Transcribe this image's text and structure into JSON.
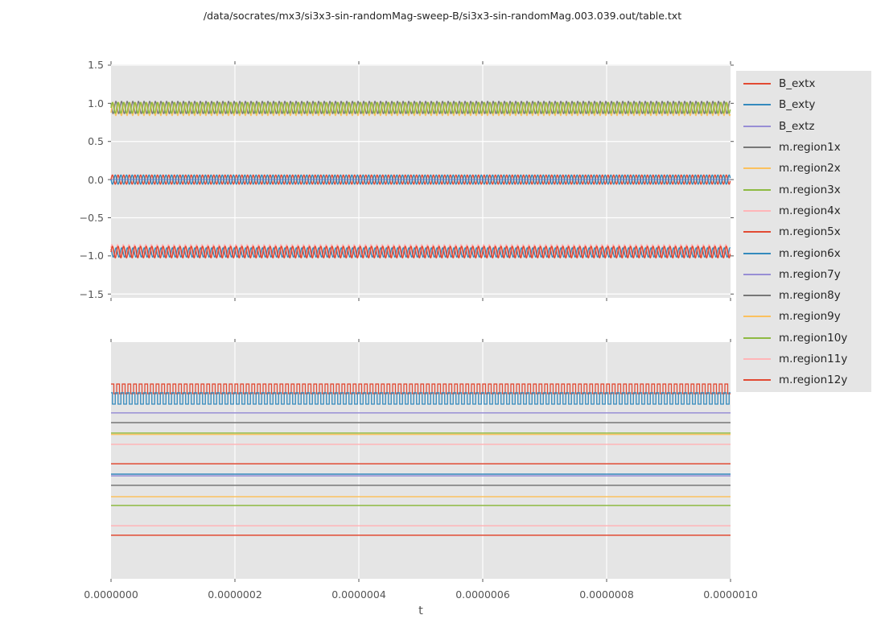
{
  "title": "/data/socrates/mx3/si3x3-sin-randomMag-sweep-B/si3x3-sin-randomMag.003.039.out/table.txt",
  "xlabel": "t",
  "colors": {
    "axes_background": "#e5e5e5",
    "grid": "#ffffff",
    "tick": "#555555",
    "tick_label": "#555555",
    "title_text": "#262626",
    "legend_background": "#e5e5e5",
    "palette": {
      "red": "#e24a33",
      "blue": "#348abd",
      "purple": "#988ed5",
      "gray": "#777777",
      "orange": "#fbc15e",
      "green": "#8eba42",
      "pink": "#ffb5b8"
    }
  },
  "legend": {
    "entries": [
      {
        "label": "B_extx",
        "color": "#e24a33"
      },
      {
        "label": "B_exty",
        "color": "#348abd"
      },
      {
        "label": "B_extz",
        "color": "#988ed5"
      },
      {
        "label": "m.region1x",
        "color": "#777777"
      },
      {
        "label": "m.region2x",
        "color": "#fbc15e"
      },
      {
        "label": "m.region3x",
        "color": "#8eba42"
      },
      {
        "label": "m.region4x",
        "color": "#ffb5b8"
      },
      {
        "label": "m.region5x",
        "color": "#e24a33"
      },
      {
        "label": "m.region6x",
        "color": "#348abd"
      },
      {
        "label": "m.region7y",
        "color": "#988ed5"
      },
      {
        "label": "m.region8y",
        "color": "#777777"
      },
      {
        "label": "m.region9y",
        "color": "#fbc15e"
      },
      {
        "label": "m.region10y",
        "color": "#8eba42"
      },
      {
        "label": "m.region11y",
        "color": "#ffb5b8"
      },
      {
        "label": "m.region12y",
        "color": "#e24a33"
      }
    ]
  },
  "chart_data": [
    {
      "id": "top",
      "type": "line",
      "xlim": [
        0,
        1e-06
      ],
      "ylim": [
        -1.55,
        1.51
      ],
      "x_ticks": [
        0,
        2e-07,
        4e-07,
        6e-07,
        8e-07,
        1e-06
      ],
      "y_ticks": [
        1.5,
        1.0,
        0.5,
        0.0,
        -0.5,
        -1.0,
        -1.5
      ],
      "y_tick_labels": [
        "1.5",
        "1.0",
        "0.5",
        "0.0",
        "−0.5",
        "−1.0",
        "−1.5"
      ],
      "grid": true,
      "series": [
        {
          "name": "B_extz",
          "color": "#988ed5",
          "waveform": "flat",
          "center": 0.0,
          "lw": 1.2
        },
        {
          "name": "B_extx",
          "color": "#e24a33",
          "waveform": "sine",
          "center": 0.0,
          "amplitude": 0.06,
          "cycles": 110,
          "phase": 0.0,
          "lw": 1.4
        },
        {
          "name": "B_exty",
          "color": "#348abd",
          "waveform": "sine",
          "center": 0.0,
          "amplitude": 0.06,
          "cycles": 110,
          "phase": 3.1,
          "lw": 1.4
        },
        {
          "name": "m.region1x",
          "color": "#777777",
          "waveform": "sine",
          "center": 0.945,
          "amplitude": 0.08,
          "cycles": 110,
          "phase": 2.4,
          "lw": 1.4
        },
        {
          "name": "m.region2x",
          "color": "#fbc15e",
          "waveform": "sine",
          "center": 0.925,
          "amplitude": 0.085,
          "cycles": 110,
          "phase": -0.6,
          "lw": 1.4
        },
        {
          "name": "m.region3x",
          "color": "#8eba42",
          "waveform": "sine",
          "center": 0.94,
          "amplitude": 0.07,
          "cycles": 110,
          "phase": 0.0,
          "lw": 1.5
        },
        {
          "name": "m.region4x",
          "color": "#ffb5b8",
          "waveform": "sine",
          "center": -0.935,
          "amplitude": 0.085,
          "cycles": 110,
          "phase": 0.5,
          "lw": 1.4
        },
        {
          "name": "m.region6x",
          "color": "#348abd",
          "waveform": "sine",
          "center": -0.955,
          "amplitude": 0.06,
          "cycles": 110,
          "phase": 2.2,
          "lw": 1.4
        },
        {
          "name": "m.region5x",
          "color": "#e24a33",
          "waveform": "sine",
          "center": -0.95,
          "amplitude": 0.075,
          "cycles": 110,
          "phase": 0.0,
          "lw": 1.5
        }
      ]
    },
    {
      "id": "bottom",
      "type": "line",
      "xlim": [
        0,
        1e-06
      ],
      "x_ticks": [
        0,
        2e-07,
        4e-07,
        6e-07,
        8e-07,
        1e-06
      ],
      "x_tick_labels": [
        "0.0000000",
        "0.0000002",
        "0.0000004",
        "0.0000006",
        "0.0000008",
        "0.0000010"
      ],
      "y_ticks": [],
      "grid": true,
      "note": "y axis unlabeled; vertical positions given as fraction of plot height from top",
      "series": [
        {
          "name": "B_extx",
          "color": "#e24a33",
          "waveform": "square",
          "y_high_frac": 0.177,
          "y_low_frac": 0.218,
          "cycles": 110,
          "phase": 0.0,
          "lw": 1.3
        },
        {
          "name": "B_exty",
          "color": "#348abd",
          "waveform": "square",
          "y_high_frac": 0.214,
          "y_low_frac": 0.262,
          "cycles": 110,
          "phase": 0.25,
          "lw": 1.3
        },
        {
          "name": "B_extz",
          "color": "#988ed5",
          "waveform": "flat",
          "y_frac": 0.299,
          "lw": 1.5
        },
        {
          "name": "m.region1x",
          "color": "#777777",
          "waveform": "flat",
          "y_frac": 0.34,
          "lw": 1.5
        },
        {
          "name": "m.region2x",
          "color": "#fbc15e",
          "waveform": "flat",
          "y_frac": 0.39,
          "lw": 1.5
        },
        {
          "name": "m.region3x",
          "color": "#8eba42",
          "waveform": "flat",
          "y_frac": 0.384,
          "lw": 1.4
        },
        {
          "name": "m.region4x",
          "color": "#ffb5b8",
          "waveform": "flat",
          "y_frac": 0.432,
          "lw": 1.5
        },
        {
          "name": "m.region5x",
          "color": "#e24a33",
          "waveform": "flat",
          "y_frac": 0.514,
          "lw": 1.5
        },
        {
          "name": "m.region7y",
          "color": "#988ed5",
          "waveform": "flat",
          "y_frac": 0.565,
          "lw": 1.5
        },
        {
          "name": "m.region6x",
          "color": "#348abd",
          "waveform": "flat",
          "y_frac": 0.558,
          "lw": 1.5
        },
        {
          "name": "m.region8y",
          "color": "#777777",
          "waveform": "flat",
          "y_frac": 0.605,
          "lw": 1.5
        },
        {
          "name": "m.region9y",
          "color": "#fbc15e",
          "waveform": "flat",
          "y_frac": 0.653,
          "lw": 1.5
        },
        {
          "name": "m.region10y",
          "color": "#8eba42",
          "waveform": "flat",
          "y_frac": 0.69,
          "lw": 1.5
        },
        {
          "name": "m.region11y",
          "color": "#ffb5b8",
          "waveform": "flat",
          "y_frac": 0.776,
          "lw": 1.5
        },
        {
          "name": "m.region12y",
          "color": "#e24a33",
          "waveform": "flat",
          "y_frac": 0.816,
          "lw": 1.5
        }
      ]
    }
  ]
}
